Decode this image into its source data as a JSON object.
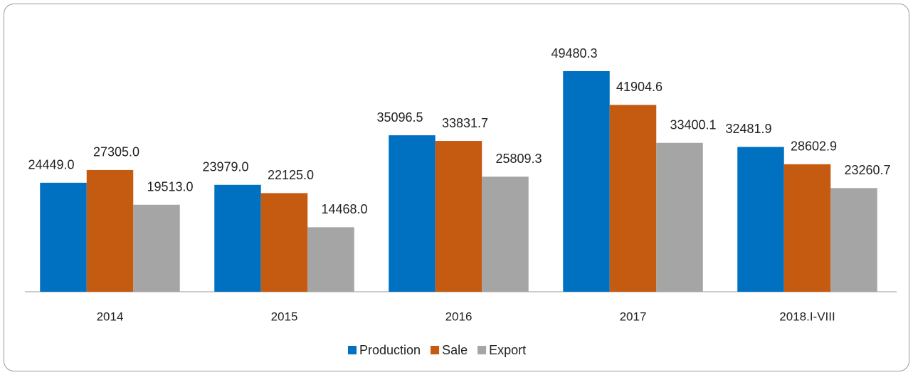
{
  "chart_data": {
    "type": "bar",
    "categories": [
      "2014",
      "2015",
      "2016",
      "2017",
      "2018.I-VIII"
    ],
    "series": [
      {
        "name": "Production",
        "color": "#0070c0",
        "values": [
          24449.0,
          23979.0,
          35096.5,
          49480.3,
          32481.9
        ],
        "value_labels": [
          "24449.0",
          "23979.0",
          "35096.5",
          "49480.3",
          "32481.9"
        ]
      },
      {
        "name": "Sale",
        "color": "#c55a11",
        "values": [
          27305.0,
          22125.0,
          33831.7,
          41904.6,
          28602.9
        ],
        "value_labels": [
          "27305.0",
          "22125.0",
          "33831.7",
          "41904.6",
          "28602.9"
        ]
      },
      {
        "name": "Export",
        "color": "#a5a5a5",
        "values": [
          19513.0,
          14468.0,
          25809.3,
          33400.1,
          23260.7
        ],
        "value_labels": [
          "19513.0",
          "14468.0",
          "25809.3",
          "33400.1",
          "23260.7"
        ]
      }
    ],
    "legend": "bottom"
  }
}
